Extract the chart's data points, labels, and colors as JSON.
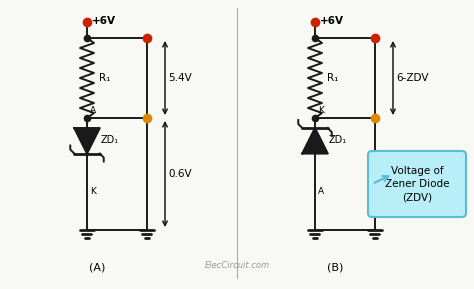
{
  "background_color": "#f8f8f5",
  "fig_width": 4.74,
  "fig_height": 2.89,
  "label_A": "(A)",
  "label_B": "(B)",
  "watermark": "ElecCircuit.com",
  "voltage_label_A1": "+6V",
  "voltage_label_A2": "5.4V",
  "voltage_label_A3": "0.6V",
  "voltage_label_B1": "+6V",
  "voltage_label_B2": "6-ZDV",
  "R1_label": "R₁",
  "ZD1_label": "ZD₁",
  "callout_text": "Voltage of\nZener Diode\n(ZDV)",
  "callout_color": "#b8eef8",
  "callout_edge": "#5bbbd4",
  "line_color": "#1a1a1a",
  "dot_red": "#cc2200",
  "dot_orange": "#dd8800",
  "dot_black": "#1a1a1a",
  "diode_fill": "#1a1a1a",
  "divider_color": "#aaaaaa"
}
